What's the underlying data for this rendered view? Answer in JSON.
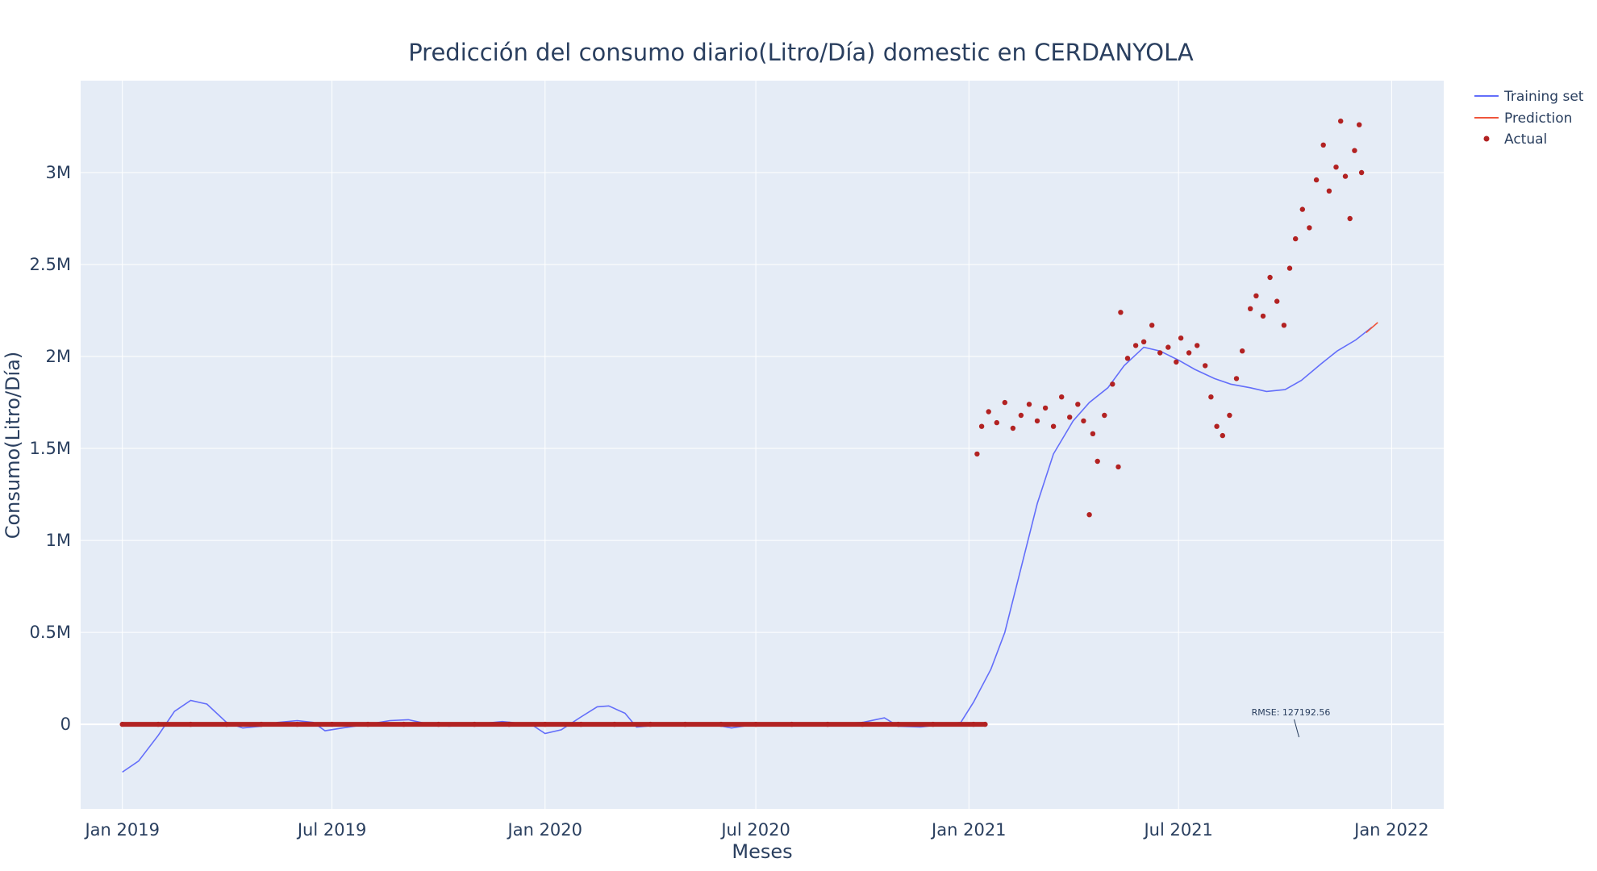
{
  "chart_data": {
    "type": "line",
    "title": "Predicción del consumo diario(Litro/Día) domestic en CERDANYOLA",
    "xlabel": "Meses",
    "ylabel": "Consumo(Litro/Día)",
    "xlim": [
      "2018-11-26",
      "2022-02-15"
    ],
    "ylim": [
      -460000,
      3500000
    ],
    "x_ticks": [
      {
        "date": "2019-01-01",
        "label": "Jan 2019"
      },
      {
        "date": "2019-07-01",
        "label": "Jul 2019"
      },
      {
        "date": "2020-01-01",
        "label": "Jan 2020"
      },
      {
        "date": "2020-07-01",
        "label": "Jul 2020"
      },
      {
        "date": "2021-01-01",
        "label": "Jan 2021"
      },
      {
        "date": "2021-07-01",
        "label": "Jul 2021"
      },
      {
        "date": "2022-01-01",
        "label": "Jan 2022"
      }
    ],
    "y_ticks": [
      {
        "value": 0,
        "label": "0"
      },
      {
        "value": 500000,
        "label": "0.5M"
      },
      {
        "value": 1000000,
        "label": "1M"
      },
      {
        "value": 1500000,
        "label": "1.5M"
      },
      {
        "value": 2000000,
        "label": "2M"
      },
      {
        "value": 2500000,
        "label": "2.5M"
      },
      {
        "value": 3000000,
        "label": "3M"
      }
    ],
    "grid": true,
    "legend_position": "top-right",
    "series": [
      {
        "name": "Training set",
        "kind": "line",
        "color": "#636efa",
        "points": [
          [
            "2019-01-01",
            -260000
          ],
          [
            "2019-01-15",
            -200000
          ],
          [
            "2019-02-01",
            -60000
          ],
          [
            "2019-02-15",
            70000
          ],
          [
            "2019-03-01",
            130000
          ],
          [
            "2019-03-15",
            110000
          ],
          [
            "2019-04-01",
            10000
          ],
          [
            "2019-04-15",
            -20000
          ],
          [
            "2019-05-01",
            -10000
          ],
          [
            "2019-05-15",
            10000
          ],
          [
            "2019-06-01",
            20000
          ],
          [
            "2019-06-15",
            10000
          ],
          [
            "2019-06-25",
            -35000
          ],
          [
            "2019-07-10",
            -20000
          ],
          [
            "2019-08-01",
            0
          ],
          [
            "2019-08-20",
            20000
          ],
          [
            "2019-09-05",
            25000
          ],
          [
            "2019-09-20",
            5000
          ],
          [
            "2019-10-10",
            -10000
          ],
          [
            "2019-11-01",
            0
          ],
          [
            "2019-11-25",
            15000
          ],
          [
            "2019-12-20",
            0
          ],
          [
            "2020-01-01",
            -50000
          ],
          [
            "2020-01-15",
            -30000
          ],
          [
            "2020-02-01",
            40000
          ],
          [
            "2020-02-15",
            95000
          ],
          [
            "2020-02-25",
            100000
          ],
          [
            "2020-03-10",
            60000
          ],
          [
            "2020-03-20",
            -15000
          ],
          [
            "2020-04-15",
            0
          ],
          [
            "2020-05-20",
            5000
          ],
          [
            "2020-06-10",
            -20000
          ],
          [
            "2020-07-01",
            0
          ],
          [
            "2020-09-01",
            0
          ],
          [
            "2020-10-01",
            10000
          ],
          [
            "2020-10-20",
            35000
          ],
          [
            "2020-11-01",
            -10000
          ],
          [
            "2020-11-20",
            -15000
          ],
          [
            "2020-12-10",
            0
          ],
          [
            "2020-12-25",
            10000
          ],
          [
            "2021-01-05",
            120000
          ],
          [
            "2021-01-20",
            300000
          ],
          [
            "2021-02-01",
            500000
          ],
          [
            "2021-02-15",
            850000
          ],
          [
            "2021-03-01",
            1200000
          ],
          [
            "2021-03-15",
            1470000
          ],
          [
            "2021-04-01",
            1650000
          ],
          [
            "2021-04-15",
            1750000
          ],
          [
            "2021-05-01",
            1830000
          ],
          [
            "2021-05-15",
            1950000
          ],
          [
            "2021-06-01",
            2050000
          ],
          [
            "2021-06-15",
            2030000
          ],
          [
            "2021-07-01",
            1980000
          ],
          [
            "2021-07-15",
            1930000
          ],
          [
            "2021-08-01",
            1880000
          ],
          [
            "2021-08-15",
            1850000
          ],
          [
            "2021-09-01",
            1830000
          ],
          [
            "2021-09-15",
            1810000
          ],
          [
            "2021-10-01",
            1820000
          ],
          [
            "2021-10-15",
            1870000
          ],
          [
            "2021-11-01",
            1960000
          ],
          [
            "2021-11-15",
            2030000
          ],
          [
            "2021-12-01",
            2090000
          ],
          [
            "2021-12-15",
            2160000
          ]
        ]
      },
      {
        "name": "Prediction",
        "kind": "line",
        "color": "#ef553b",
        "points": [
          [
            "2021-12-10",
            2130000
          ],
          [
            "2021-12-20",
            2185000
          ]
        ]
      },
      {
        "name": "Actual",
        "kind": "markers",
        "color": "#b22222",
        "points": [
          [
            "2019-01-01",
            0
          ],
          [
            "2019-02-01",
            0
          ],
          [
            "2019-03-01",
            0
          ],
          [
            "2019-04-01",
            0
          ],
          [
            "2019-05-01",
            0
          ],
          [
            "2019-06-01",
            0
          ],
          [
            "2019-07-01",
            0
          ],
          [
            "2019-08-01",
            0
          ],
          [
            "2019-09-01",
            0
          ],
          [
            "2019-10-01",
            0
          ],
          [
            "2019-11-01",
            0
          ],
          [
            "2019-12-01",
            0
          ],
          [
            "2020-01-01",
            0
          ],
          [
            "2020-02-01",
            0
          ],
          [
            "2020-03-01",
            0
          ],
          [
            "2020-04-01",
            0
          ],
          [
            "2020-05-01",
            0
          ],
          [
            "2020-06-01",
            0
          ],
          [
            "2020-07-01",
            0
          ],
          [
            "2020-08-01",
            0
          ],
          [
            "2020-09-01",
            0
          ],
          [
            "2020-10-01",
            0
          ],
          [
            "2020-11-01",
            0
          ],
          [
            "2020-12-01",
            0
          ],
          [
            "2021-01-05",
            0
          ],
          [
            "2021-01-15",
            0
          ],
          [
            "2021-01-08",
            1470000
          ],
          [
            "2021-01-12",
            1620000
          ],
          [
            "2021-01-18",
            1700000
          ],
          [
            "2021-01-25",
            1640000
          ],
          [
            "2021-02-01",
            1750000
          ],
          [
            "2021-02-08",
            1610000
          ],
          [
            "2021-02-15",
            1680000
          ],
          [
            "2021-02-22",
            1740000
          ],
          [
            "2021-03-01",
            1650000
          ],
          [
            "2021-03-08",
            1720000
          ],
          [
            "2021-03-15",
            1620000
          ],
          [
            "2021-03-22",
            1780000
          ],
          [
            "2021-03-29",
            1670000
          ],
          [
            "2021-04-05",
            1740000
          ],
          [
            "2021-04-10",
            1650000
          ],
          [
            "2021-04-15",
            1140000
          ],
          [
            "2021-04-18",
            1580000
          ],
          [
            "2021-04-22",
            1430000
          ],
          [
            "2021-04-28",
            1680000
          ],
          [
            "2021-05-05",
            1850000
          ],
          [
            "2021-05-10",
            1400000
          ],
          [
            "2021-05-12",
            2240000
          ],
          [
            "2021-05-18",
            1990000
          ],
          [
            "2021-05-25",
            2060000
          ],
          [
            "2021-06-01",
            2080000
          ],
          [
            "2021-06-08",
            2170000
          ],
          [
            "2021-06-15",
            2020000
          ],
          [
            "2021-06-22",
            2050000
          ],
          [
            "2021-06-29",
            1970000
          ],
          [
            "2021-07-03",
            2100000
          ],
          [
            "2021-07-10",
            2020000
          ],
          [
            "2021-07-17",
            2060000
          ],
          [
            "2021-07-24",
            1950000
          ],
          [
            "2021-07-29",
            1780000
          ],
          [
            "2021-08-03",
            1620000
          ],
          [
            "2021-08-08",
            1570000
          ],
          [
            "2021-08-14",
            1680000
          ],
          [
            "2021-08-20",
            1880000
          ],
          [
            "2021-08-25",
            2030000
          ],
          [
            "2021-09-01",
            2260000
          ],
          [
            "2021-09-06",
            2330000
          ],
          [
            "2021-09-12",
            2220000
          ],
          [
            "2021-09-18",
            2430000
          ],
          [
            "2021-09-24",
            2300000
          ],
          [
            "2021-09-30",
            2170000
          ],
          [
            "2021-10-05",
            2480000
          ],
          [
            "2021-10-10",
            2640000
          ],
          [
            "2021-10-16",
            2800000
          ],
          [
            "2021-10-22",
            2700000
          ],
          [
            "2021-10-28",
            2960000
          ],
          [
            "2021-11-03",
            3150000
          ],
          [
            "2021-11-08",
            2900000
          ],
          [
            "2021-11-14",
            3030000
          ],
          [
            "2021-11-18",
            3280000
          ],
          [
            "2021-11-22",
            2980000
          ],
          [
            "2021-11-26",
            2750000
          ],
          [
            "2021-11-30",
            3120000
          ],
          [
            "2021-12-04",
            3260000
          ],
          [
            "2021-12-06",
            3000000
          ]
        ]
      }
    ],
    "annotations": [
      {
        "text": "RMSE: 127192.56",
        "x": "2021-10-13",
        "y": -70000
      }
    ]
  }
}
